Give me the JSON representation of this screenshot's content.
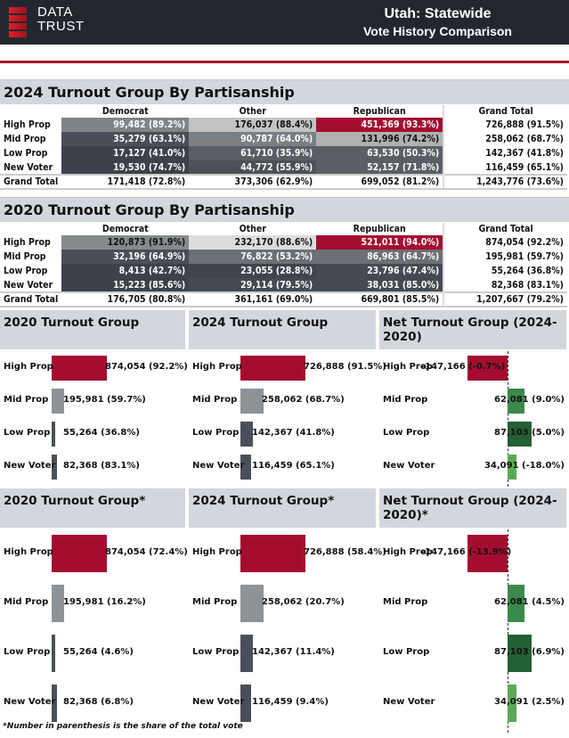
{
  "header": {
    "logo_line1": "DATA",
    "logo_line2": "TRUST",
    "title": "Utah: Statewide",
    "subtitle": "Vote History Comparison"
  },
  "tables": [
    {
      "title": "2024 Turnout Group By Partisanship",
      "columns": [
        "Democrat",
        "Other",
        "Republican",
        "Grand Total"
      ],
      "rows": [
        {
          "label": "High Prop",
          "cells": [
            "99,482 (89.2%)",
            "176,037 (88.4%)",
            "451,369 (93.3%)",
            "726,888 (91.5%)"
          ],
          "colors": [
            "#7f8487",
            "#c3c3c3",
            "#a50d30"
          ]
        },
        {
          "label": "Mid Prop",
          "cells": [
            "35,279 (63.1%)",
            "90,787 (64.0%)",
            "131,996 (74.2%)",
            "258,062 (68.7%)"
          ],
          "colors": [
            "#4a4f57",
            "#7a7f84",
            "#aeb0b1"
          ]
        },
        {
          "label": "Low Prop",
          "cells": [
            "17,127 (41.0%)",
            "61,710 (35.9%)",
            "63,530 (50.3%)",
            "142,367 (41.8%)"
          ],
          "colors": [
            "#3d424a",
            "#5a5f66",
            "#5a5f66"
          ]
        },
        {
          "label": "New Voter",
          "cells": [
            "19,530 (74.7%)",
            "44,772 (55.9%)",
            "52,157 (71.8%)",
            "116,459 (65.1%)"
          ],
          "colors": [
            "#3d424a",
            "#4c5158",
            "#5a5f66"
          ]
        }
      ],
      "total": {
        "label": "Grand Total",
        "cells": [
          "171,418 (72.8%)",
          "373,306 (62.9%)",
          "699,052 (81.2%)",
          "1,243,776 (73.6%)"
        ]
      }
    },
    {
      "title": "2020 Turnout Group By Partisanship",
      "columns": [
        "Democrat",
        "Other",
        "Republican",
        "Grand Total"
      ],
      "rows": [
        {
          "label": "High Prop",
          "cells": [
            "120,873 (91.9%)",
            "232,170 (88.6%)",
            "521,011 (94.0%)",
            "874,054 (92.2%)"
          ],
          "colors": [
            "#858a8c",
            "#dcdcdc",
            "#a50d30"
          ]
        },
        {
          "label": "Mid Prop",
          "cells": [
            "32,196 (64.9%)",
            "76,822 (53.2%)",
            "86,963 (64.7%)",
            "195,981 (59.7%)"
          ],
          "colors": [
            "#4a4f57",
            "#6b7076",
            "#6b7076"
          ]
        },
        {
          "label": "Low Prop",
          "cells": [
            "8,413 (42.7%)",
            "23,055 (28.8%)",
            "23,796 (47.4%)",
            "55,264 (36.8%)"
          ],
          "colors": [
            "#3d424a",
            "#3f444c",
            "#454a52"
          ]
        },
        {
          "label": "New Voter",
          "cells": [
            "15,223 (85.6%)",
            "29,114 (79.5%)",
            "38,031 (85.0%)",
            "82,368 (83.1%)"
          ],
          "colors": [
            "#3d424a",
            "#454a52",
            "#454a52"
          ]
        }
      ],
      "total": {
        "label": "Grand Total",
        "cells": [
          "176,705 (80.8%)",
          "361,161 (69.0%)",
          "669,801 (85.5%)",
          "1,207,667 (79.2%)"
        ]
      }
    }
  ],
  "chart_data": [
    {
      "type": "bar",
      "title": "2020 Turnout Group",
      "categories": [
        "High Prop",
        "Mid Prop",
        "Low Prop",
        "New Voter"
      ],
      "values": [
        874054,
        195981,
        55264,
        82368
      ],
      "labels": [
        "874,054 (92.2%)",
        "195,981 (59.7%)",
        "55,264 (36.8%)",
        "82,368 (83.1%)"
      ],
      "colors": [
        "#a50d30",
        "#8e9397",
        "#4a4f5a",
        "#4a4f5a"
      ]
    },
    {
      "type": "bar",
      "title": "2024 Turnout Group",
      "categories": [
        "High Prop",
        "Mid Prop",
        "Low Prop",
        "New Voter"
      ],
      "values": [
        726888,
        258062,
        142367,
        116459
      ],
      "labels": [
        "726,888 (91.5%)",
        "258,062 (68.7%)",
        "142,367 (41.8%)",
        "116,459 (65.1%)"
      ],
      "colors": [
        "#a50d30",
        "#8e9397",
        "#4a4f5a",
        "#4a4f5a"
      ]
    },
    {
      "type": "bar",
      "title": "Net Turnout Group (2024-2020)",
      "categories": [
        "High Prop",
        "Mid Prop",
        "Low Prop",
        "New Voter"
      ],
      "values": [
        -147166,
        62081,
        87103,
        34091
      ],
      "labels": [
        "-147,166 (-0.7%)",
        "62,081 (9.0%)",
        "87,103 (5.0%)",
        "34,091 (-18.0%)"
      ],
      "colors": [
        "#a50d30",
        "#3a8a4a",
        "#245f35",
        "#5aaa55"
      ]
    },
    {
      "type": "bar",
      "title": "2020 Turnout Group*",
      "categories": [
        "High Prop",
        "Mid Prop",
        "Low Prop",
        "New Voter"
      ],
      "values": [
        874054,
        195981,
        55264,
        82368
      ],
      "labels": [
        "874,054 (72.4%)",
        "195,981 (16.2%)",
        "55,264 (4.6%)",
        "82,368 (6.8%)"
      ],
      "colors": [
        "#a50d30",
        "#8e9397",
        "#4a4f5a",
        "#4a4f5a"
      ]
    },
    {
      "type": "bar",
      "title": "2024 Turnout Group*",
      "categories": [
        "High Prop",
        "Mid Prop",
        "Low Prop",
        "New Voter"
      ],
      "values": [
        726888,
        258062,
        142367,
        116459
      ],
      "labels": [
        "726,888 (58.4%)",
        "258,062 (20.7%)",
        "142,367 (11.4%)",
        "116,459 (9.4%)"
      ],
      "colors": [
        "#a50d30",
        "#8e9397",
        "#4a4f5a",
        "#4a4f5a"
      ]
    },
    {
      "type": "bar",
      "title": "Net Turnout Group (2024-2020)*",
      "categories": [
        "High Prop",
        "Mid Prop",
        "Low Prop",
        "New Voter"
      ],
      "values": [
        -147166,
        62081,
        87103,
        34091
      ],
      "labels": [
        "-147,166 (-13.9%)",
        "62,081 (4.5%)",
        "87,103 (6.9%)",
        "34,091 (2.5%)"
      ],
      "colors": [
        "#a50d30",
        "#3a8a4a",
        "#245f35",
        "#5aaa55"
      ]
    }
  ],
  "footnote": "*Number in parenthesis is the share of the total vote"
}
